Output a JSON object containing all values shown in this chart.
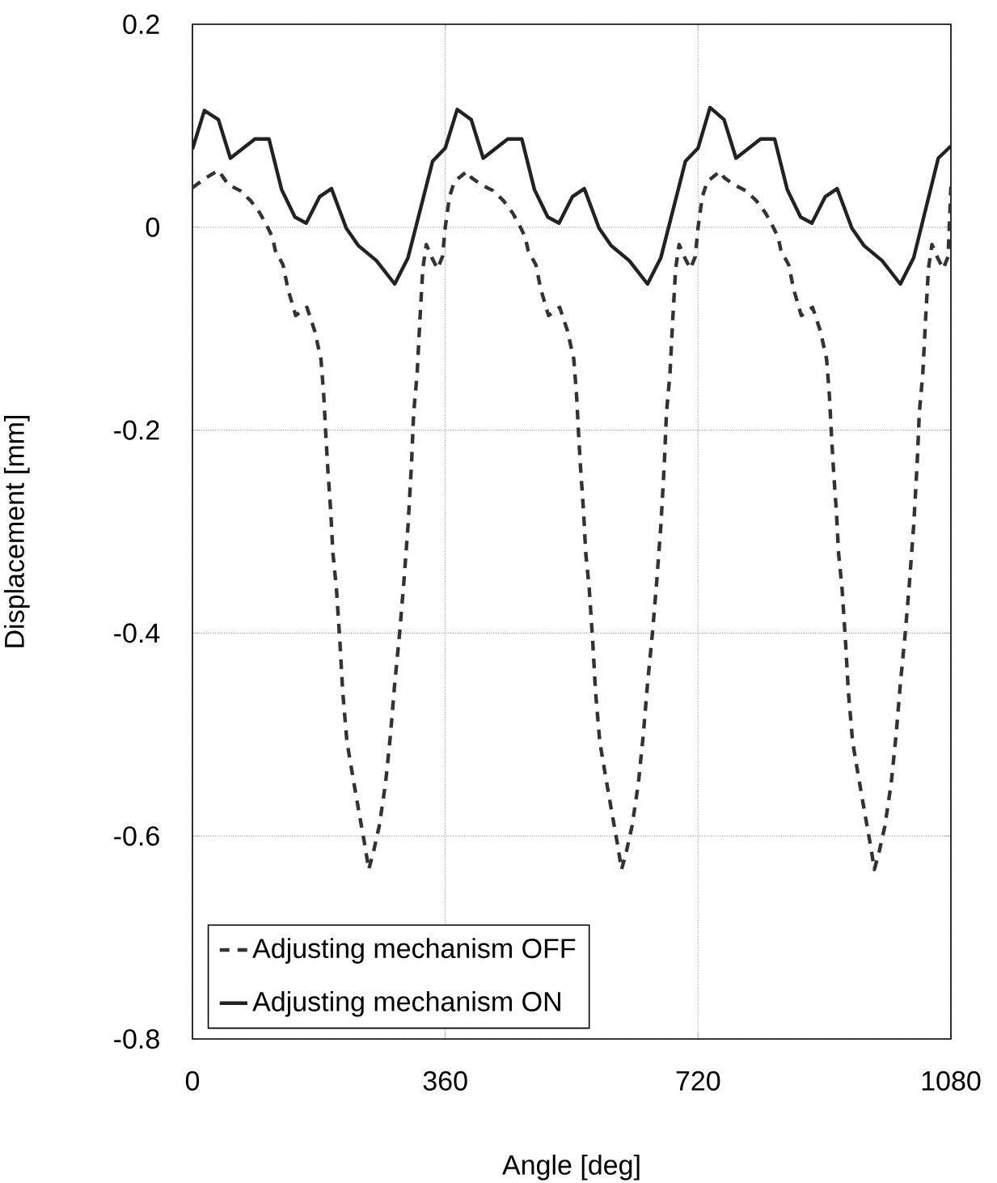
{
  "chart_data": {
    "type": "line",
    "xlabel": "Angle [deg]",
    "ylabel": "Displacement [mm]",
    "xlim": [
      0,
      1080
    ],
    "ylim": [
      -0.8,
      0.2
    ],
    "xticks": [
      0,
      360,
      720,
      1080
    ],
    "yticks": [
      -0.8,
      -0.6,
      -0.4,
      -0.2,
      0,
      0.2
    ],
    "grid": true,
    "legend": "bottom left",
    "marker": "none",
    "series": [
      {
        "name": "Adjusting mechanism OFF",
        "color": "#333333",
        "line_style": "dashed",
        "x": [
          0,
          20,
          37,
          51,
          68,
          83,
          96,
          107,
          114,
          118,
          129,
          136,
          147,
          163,
          174,
          183,
          187,
          190,
          193,
          197,
          200,
          205,
          210,
          214,
          220,
          227,
          237,
          246,
          251,
          258,
          266,
          275,
          282,
          288,
          295,
          301,
          307,
          312,
          315,
          320,
          324,
          328,
          333,
          341,
          349,
          356,
          360,
          366,
          373,
          391,
          397,
          411,
          428,
          443,
          456,
          467,
          474,
          478,
          489,
          496,
          507,
          523,
          534,
          543,
          547,
          550,
          553,
          557,
          560,
          565,
          570,
          574,
          580,
          587,
          597,
          606,
          611,
          618,
          626,
          635,
          642,
          648,
          655,
          661,
          667,
          672,
          675,
          680,
          684,
          688,
          693,
          701,
          709,
          716,
          720,
          726,
          733,
          751,
          757,
          771,
          788,
          803,
          816,
          827,
          834,
          838,
          849,
          856,
          867,
          883,
          894,
          903,
          907,
          910,
          913,
          917,
          920,
          925,
          930,
          934,
          940,
          947,
          957,
          966,
          971,
          978,
          986,
          995,
          1002,
          1008,
          1015,
          1021,
          1027,
          1032,
          1035,
          1040,
          1044,
          1048,
          1053,
          1061,
          1069,
          1076,
          1080
        ],
        "values": [
          0.039,
          0.049,
          0.056,
          0.042,
          0.036,
          0.026,
          0.014,
          0.0,
          -0.01,
          -0.023,
          -0.037,
          -0.061,
          -0.087,
          -0.079,
          -0.102,
          -0.13,
          -0.166,
          -0.206,
          -0.241,
          -0.281,
          -0.321,
          -0.356,
          -0.409,
          -0.458,
          -0.507,
          -0.536,
          -0.576,
          -0.611,
          -0.633,
          -0.615,
          -0.59,
          -0.548,
          -0.5,
          -0.45,
          -0.4,
          -0.35,
          -0.294,
          -0.232,
          -0.183,
          -0.144,
          -0.09,
          -0.041,
          -0.017,
          -0.03,
          -0.041,
          -0.029,
          0.0,
          0.03,
          0.045,
          0.055,
          0.049,
          0.042,
          0.036,
          0.026,
          0.014,
          0.0,
          -0.01,
          -0.023,
          -0.037,
          -0.061,
          -0.087,
          -0.079,
          -0.102,
          -0.13,
          -0.166,
          -0.206,
          -0.241,
          -0.281,
          -0.321,
          -0.356,
          -0.409,
          -0.458,
          -0.507,
          -0.536,
          -0.576,
          -0.611,
          -0.633,
          -0.615,
          -0.59,
          -0.548,
          -0.5,
          -0.45,
          -0.4,
          -0.35,
          -0.294,
          -0.232,
          -0.183,
          -0.144,
          -0.09,
          -0.041,
          -0.017,
          -0.03,
          -0.041,
          -0.029,
          0.0,
          0.03,
          0.045,
          0.055,
          0.049,
          0.042,
          0.036,
          0.026,
          0.014,
          0.0,
          -0.01,
          -0.023,
          -0.037,
          -0.061,
          -0.087,
          -0.079,
          -0.102,
          -0.13,
          -0.166,
          -0.206,
          -0.241,
          -0.281,
          -0.321,
          -0.356,
          -0.409,
          -0.458,
          -0.507,
          -0.536,
          -0.576,
          -0.611,
          -0.633,
          -0.615,
          -0.59,
          -0.548,
          -0.5,
          -0.45,
          -0.4,
          -0.35,
          -0.294,
          -0.232,
          -0.183,
          -0.144,
          -0.09,
          -0.041,
          -0.017,
          -0.03,
          -0.041,
          -0.029,
          0.04
        ]
      },
      {
        "name": "Adjusting mechanism ON",
        "color": "#222222",
        "line_style": "solid",
        "x": [
          0,
          17,
          37,
          54,
          89,
          109,
          127,
          146,
          162,
          181,
          198,
          219,
          236,
          262,
          288,
          307,
          342,
          360,
          377,
          397,
          414,
          449,
          469,
          487,
          506,
          522,
          541,
          558,
          579,
          596,
          622,
          648,
          667,
          702,
          720,
          737,
          757,
          774,
          809,
          829,
          847,
          866,
          882,
          901,
          918,
          939,
          956,
          982,
          1008,
          1027,
          1062,
          1080
        ],
        "values": [
          0.077,
          0.115,
          0.106,
          0.068,
          0.087,
          0.087,
          0.037,
          0.01,
          0.004,
          0.03,
          0.038,
          -0.001,
          -0.018,
          -0.033,
          -0.056,
          -0.03,
          0.065,
          0.078,
          0.116,
          0.106,
          0.068,
          0.087,
          0.087,
          0.037,
          0.01,
          0.004,
          0.03,
          0.038,
          -0.001,
          -0.018,
          -0.033,
          -0.056,
          -0.03,
          0.065,
          0.078,
          0.118,
          0.106,
          0.068,
          0.087,
          0.087,
          0.037,
          0.01,
          0.004,
          0.03,
          0.038,
          -0.001,
          -0.018,
          -0.033,
          -0.056,
          -0.03,
          0.068,
          0.08
        ]
      }
    ]
  }
}
